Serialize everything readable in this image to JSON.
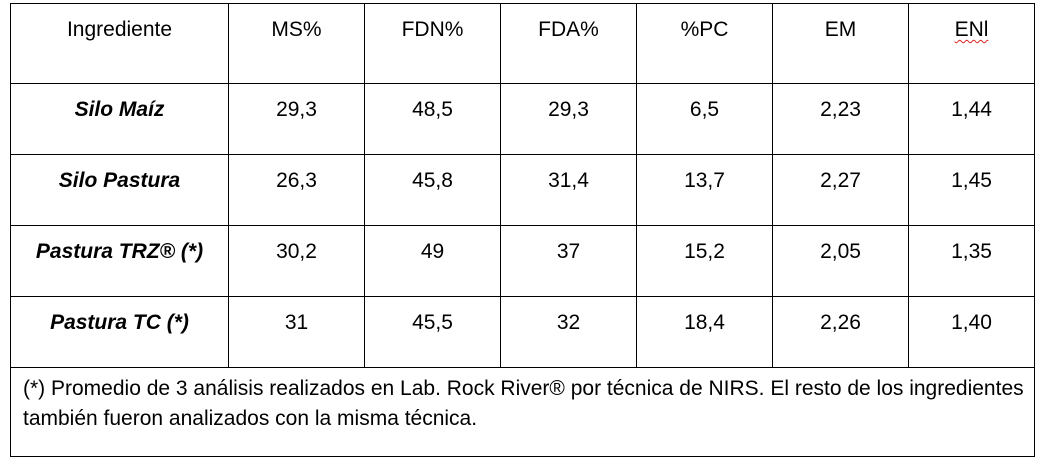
{
  "table": {
    "headers": [
      "Ingrediente",
      "MS%",
      "FDN%",
      "FDA%",
      "%PC",
      "EM",
      "ENl"
    ],
    "rows": [
      {
        "name": "Silo Maíz",
        "values": [
          "29,3",
          "48,5",
          "29,3",
          "6,5",
          "2,23",
          "1,44"
        ]
      },
      {
        "name": "Silo Pastura",
        "values": [
          "26,3",
          "45,8",
          "31,4",
          "13,7",
          "2,27",
          "1,45"
        ]
      },
      {
        "name": "Pastura TRZ® (*)",
        "values": [
          "30,2",
          "49",
          "37",
          "15,2",
          "2,05",
          "1,35"
        ]
      },
      {
        "name": "Pastura TC (*)",
        "values": [
          "31",
          "45,5",
          "32",
          "18,4",
          "2,26",
          "1,40"
        ]
      }
    ],
    "footnote": "(*) Promedio de 3 análisis realizados en Lab. Rock River® por técnica de NIRS. El resto de los ingredientes también fueron analizados con la misma técnica."
  },
  "colors": {
    "border": "#000000",
    "text": "#000000",
    "spellcheck_underline": "#d22222"
  }
}
